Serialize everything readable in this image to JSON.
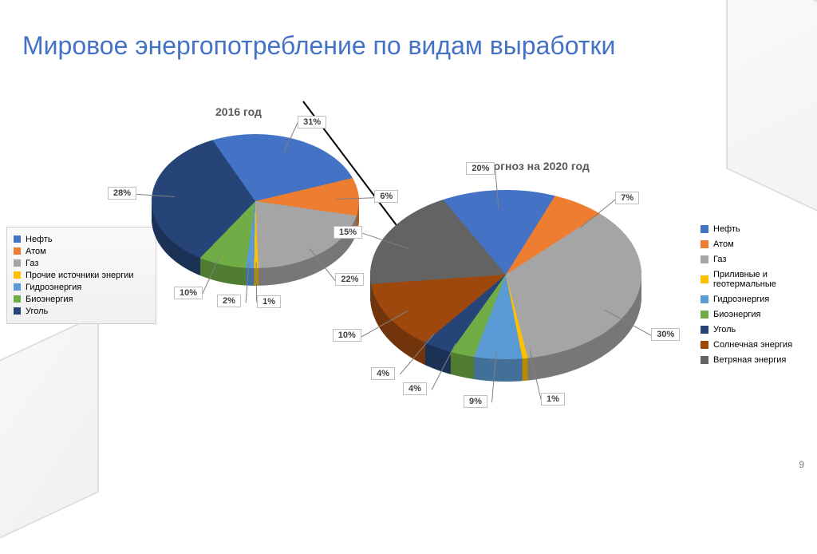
{
  "title": "Мировое энергопотребление по видам выработки",
  "page_number": "9",
  "chart1": {
    "type": "pie",
    "title": "2016 год",
    "start_angle": -35,
    "thickness": 22,
    "slices": [
      {
        "label": "Нефть",
        "value": 31,
        "color": "#4472c4"
      },
      {
        "label": "Атом",
        "value": 6,
        "color": "#ed7d31"
      },
      {
        "label": "Газ",
        "value": 22,
        "color": "#a5a5a5"
      },
      {
        "label": "Прочие источники энергии",
        "value": 1,
        "color": "#ffc000"
      },
      {
        "label": "Гидроэнергия",
        "value": 2,
        "color": "#5b9bd5"
      },
      {
        "label": "Биоэнергия",
        "value": 10,
        "color": "#70ad47"
      },
      {
        "label": "Уголь",
        "value": 28,
        "color": "#264478"
      }
    ]
  },
  "chart2": {
    "type": "pie",
    "title": "Прогноз на 2020 год",
    "start_angle": -40,
    "thickness": 28,
    "slices": [
      {
        "label": "Нефть",
        "value": 20,
        "color": "#4472c4"
      },
      {
        "label": "Атом",
        "value": 7,
        "color": "#ed7d31"
      },
      {
        "label": "Газ",
        "value": 30,
        "color": "#a5a5a5"
      },
      {
        "label": "Приливные и геотермальные",
        "value": 1,
        "color": "#ffc000"
      },
      {
        "label": "Гидроэнергия",
        "value": 9,
        "color": "#5b9bd5"
      },
      {
        "label": "Биоэнергия",
        "value": 4,
        "color": "#70ad47"
      },
      {
        "label": "Уголь",
        "value": 4,
        "color": "#264478"
      },
      {
        "label": "Солнечная энергия",
        "value": 10,
        "color": "#9e480e"
      },
      {
        "label": "Ветряная энергия",
        "value": 15,
        "color": "#636363"
      }
    ]
  },
  "legend_left": [
    {
      "label": "Нефть",
      "color": "#4472c4"
    },
    {
      "label": "Атом",
      "color": "#ed7d31"
    },
    {
      "label": "Газ",
      "color": "#a5a5a5"
    },
    {
      "label": "Прочие источники энергии",
      "color": "#ffc000"
    },
    {
      "label": "Гидроэнергия",
      "color": "#5b9bd5"
    },
    {
      "label": "Биоэнергия",
      "color": "#70ad47"
    },
    {
      "label": "Уголь",
      "color": "#264478"
    }
  ],
  "legend_right": [
    {
      "label": "Нефть",
      "color": "#4472c4"
    },
    {
      "label": "Атом",
      "color": "#ed7d31"
    },
    {
      "label": "Газ",
      "color": "#a5a5a5"
    },
    {
      "label": "Приливные и геотермальные",
      "color": "#ffc000"
    },
    {
      "label": "Гидроэнергия",
      "color": "#5b9bd5"
    },
    {
      "label": "Биоэнергия",
      "color": "#70ad47"
    },
    {
      "label": "Уголь",
      "color": "#264478"
    },
    {
      "label": "Солнечная энергия",
      "color": "#9e480e"
    },
    {
      "label": "Ветряная энергия",
      "color": "#636363"
    }
  ]
}
